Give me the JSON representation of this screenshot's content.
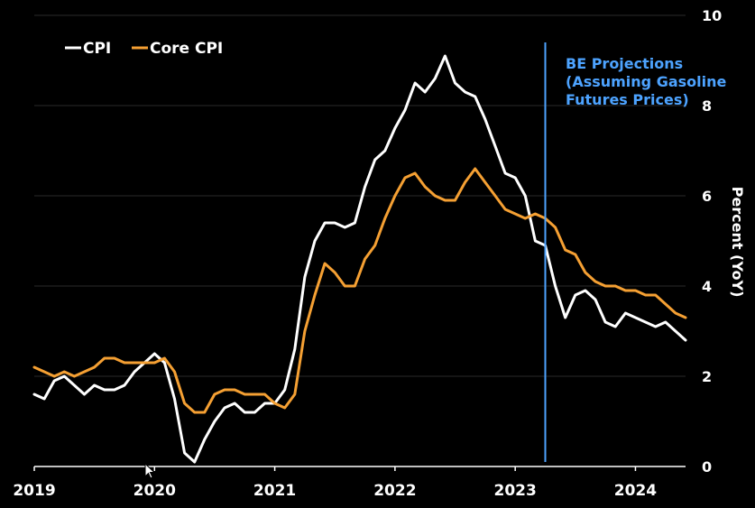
{
  "colors": {
    "background": "#000000",
    "cpi": "#ffffff",
    "core_cpi": "#f5a033",
    "projection_line": "#4da3ff",
    "grid": "#2a2a2a",
    "text": "#ffffff"
  },
  "legend": {
    "cpi_label": "CPI",
    "core_label": "Core CPI"
  },
  "annotation": {
    "line1": "BE Projections",
    "line2": "(Assuming Gasoline",
    "line3": "Futures Prices)"
  },
  "cursor_icon": "mouse-pointer-icon",
  "chart_data": {
    "type": "line",
    "title": "",
    "xlabel": "",
    "ylabel": "Percent (YoY)",
    "ylim": [
      0,
      10
    ],
    "yticks": [
      "0",
      "2",
      "4",
      "6",
      "8",
      "10"
    ],
    "xticks": [
      "2019",
      "2020",
      "2021",
      "2022",
      "2023",
      "2024"
    ],
    "xlim": [
      "2019-01",
      "2024-06"
    ],
    "grid": "horizontal",
    "legend_position": "top-left",
    "projection_start": "2023-04",
    "x": [
      "2019-01",
      "2019-02",
      "2019-03",
      "2019-04",
      "2019-05",
      "2019-06",
      "2019-07",
      "2019-08",
      "2019-09",
      "2019-10",
      "2019-11",
      "2019-12",
      "2020-01",
      "2020-02",
      "2020-03",
      "2020-04",
      "2020-05",
      "2020-06",
      "2020-07",
      "2020-08",
      "2020-09",
      "2020-10",
      "2020-11",
      "2020-12",
      "2021-01",
      "2021-02",
      "2021-03",
      "2021-04",
      "2021-05",
      "2021-06",
      "2021-07",
      "2021-08",
      "2021-09",
      "2021-10",
      "2021-11",
      "2021-12",
      "2022-01",
      "2022-02",
      "2022-03",
      "2022-04",
      "2022-05",
      "2022-06",
      "2022-07",
      "2022-08",
      "2022-09",
      "2022-10",
      "2022-11",
      "2022-12",
      "2023-01",
      "2023-02",
      "2023-03",
      "2023-04",
      "2023-05",
      "2023-06",
      "2023-07",
      "2023-08",
      "2023-09",
      "2023-10",
      "2023-11",
      "2023-12",
      "2024-01",
      "2024-02",
      "2024-03",
      "2024-04",
      "2024-05",
      "2024-06"
    ],
    "series": [
      {
        "name": "CPI",
        "values": [
          1.6,
          1.5,
          1.9,
          2.0,
          1.8,
          1.6,
          1.8,
          1.7,
          1.7,
          1.8,
          2.1,
          2.3,
          2.5,
          2.3,
          1.5,
          0.3,
          0.1,
          0.6,
          1.0,
          1.3,
          1.4,
          1.2,
          1.2,
          1.4,
          1.4,
          1.7,
          2.6,
          4.2,
          5.0,
          5.4,
          5.4,
          5.3,
          5.4,
          6.2,
          6.8,
          7.0,
          7.5,
          7.9,
          8.5,
          8.3,
          8.6,
          9.1,
          8.5,
          8.3,
          8.2,
          7.7,
          7.1,
          6.5,
          6.4,
          6.0,
          5.0,
          4.9,
          4.0,
          3.3,
          3.8,
          3.9,
          3.7,
          3.2,
          3.1,
          3.4,
          3.3,
          3.2,
          3.1,
          3.2,
          3.0,
          2.8
        ]
      },
      {
        "name": "Core CPI",
        "values": [
          2.2,
          2.1,
          2.0,
          2.1,
          2.0,
          2.1,
          2.2,
          2.4,
          2.4,
          2.3,
          2.3,
          2.3,
          2.3,
          2.4,
          2.1,
          1.4,
          1.2,
          1.2,
          1.6,
          1.7,
          1.7,
          1.6,
          1.6,
          1.6,
          1.4,
          1.3,
          1.6,
          3.0,
          3.8,
          4.5,
          4.3,
          4.0,
          4.0,
          4.6,
          4.9,
          5.5,
          6.0,
          6.4,
          6.5,
          6.2,
          6.0,
          5.9,
          5.9,
          6.3,
          6.6,
          6.3,
          6.0,
          5.7,
          5.6,
          5.5,
          5.6,
          5.5,
          5.3,
          4.8,
          4.7,
          4.3,
          4.1,
          4.0,
          4.0,
          3.9,
          3.9,
          3.8,
          3.8,
          3.6,
          3.4,
          3.3
        ]
      }
    ]
  }
}
